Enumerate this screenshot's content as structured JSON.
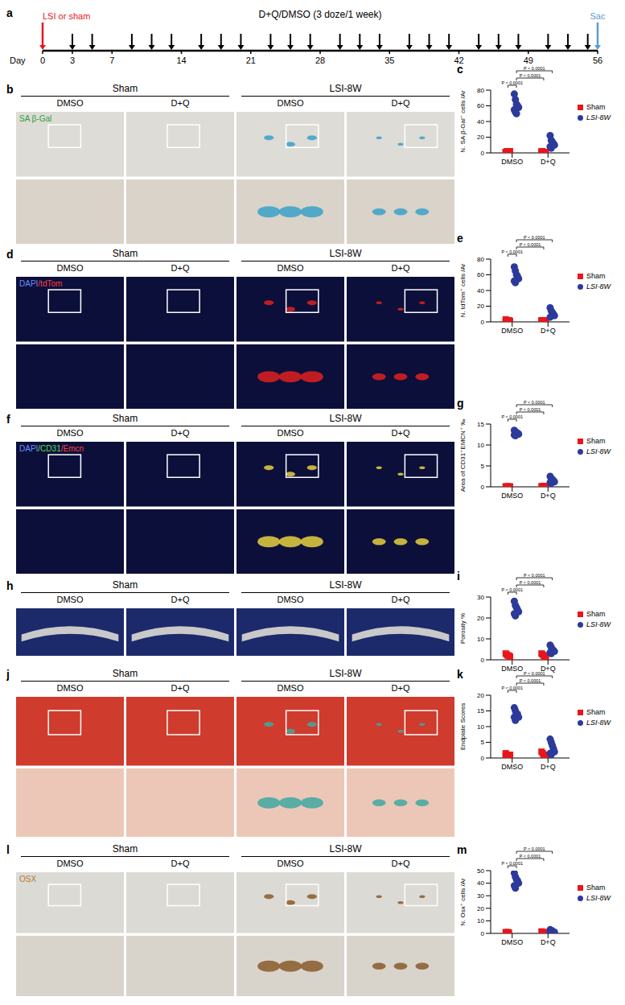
{
  "timeline": {
    "letter": "a",
    "title": "D+Q/DMSO (3 doze/1 week)",
    "x_label": "Day",
    "xlim": [
      0,
      56
    ],
    "xticks": [
      0,
      3,
      7,
      14,
      21,
      28,
      35,
      42,
      49,
      56
    ],
    "start": {
      "day": 0,
      "label": "LSI or sham",
      "color": "#e8161b"
    },
    "end": {
      "day": 56,
      "label": "Sac",
      "color": "#5b9bd5"
    },
    "dose_days": [
      3,
      5,
      9,
      11,
      13,
      16,
      18,
      20,
      23,
      25,
      27,
      30,
      32,
      34,
      37,
      39,
      41,
      44,
      46,
      48,
      51,
      53,
      55
    ]
  },
  "image_panels": [
    {
      "letter": "b",
      "stain": "SA β-Gal",
      "groups": [
        "Sham",
        "LSI-8W"
      ],
      "columns": [
        "DMSO",
        "D+Q"
      ]
    },
    {
      "letter": "d",
      "stain": "DAPI/tdTom",
      "groups": [
        "Sham",
        "LSI-8W"
      ],
      "columns": [
        "DMSO",
        "D+Q"
      ]
    },
    {
      "letter": "f",
      "stain": "DAPI/CD31/Emcn",
      "groups": [
        "Sham",
        "LSI-8W"
      ],
      "columns": [
        "DMSO",
        "D+Q"
      ]
    },
    {
      "letter": "h",
      "groups": [
        "Sham",
        "LSI-8W"
      ],
      "columns": [
        "DMSO",
        "D+Q"
      ]
    },
    {
      "letter": "j",
      "groups": [
        "Sham",
        "LSI-8W"
      ],
      "columns": [
        "DMSO",
        "D+Q"
      ]
    },
    {
      "letter": "l",
      "stain": "OSX",
      "groups": [
        "Sham",
        "LSI-8W"
      ],
      "columns": [
        "DMSO",
        "D+Q"
      ]
    }
  ],
  "chart_data": [
    {
      "letter": "c",
      "type": "scatter",
      "y_label": "N. SA β-Gal⁺ cells /Ar",
      "categories": [
        "DMSO",
        "D+Q"
      ],
      "ylim": [
        0,
        80
      ],
      "yticks": [
        0,
        20,
        40,
        60,
        80
      ],
      "legend": "right",
      "series": [
        {
          "name": "Sham",
          "color": "#e8161b",
          "marker": "square",
          "values": [
            [
              1,
              2,
              1,
              0,
              2,
              1,
              1,
              2
            ],
            [
              1,
              2,
              1,
              0,
              1,
              2
            ]
          ]
        },
        {
          "name": "LSI-8W",
          "color": "#2b3a9b",
          "marker": "circle",
          "values": [
            [
              75,
              68,
              62,
              60,
              58,
              55,
              52,
              50
            ],
            [
              22,
              16,
              14,
              12,
              10,
              8,
              6
            ]
          ]
        }
      ],
      "comparisons": [
        {
          "from": {
            "category": "DMSO",
            "series": "Sham"
          },
          "to": {
            "category": "DMSO",
            "series": "LSI-8W"
          },
          "label": "P < 0.0001"
        },
        {
          "from": {
            "category": "DMSO",
            "series": "LSI-8W"
          },
          "to": {
            "category": "D+Q",
            "series": "Sham"
          },
          "label": "P < 0.0001"
        },
        {
          "from": {
            "category": "DMSO",
            "series": "LSI-8W"
          },
          "to": {
            "category": "D+Q",
            "series": "LSI-8W"
          },
          "label": "P < 0.0001"
        }
      ]
    },
    {
      "letter": "e",
      "type": "scatter",
      "y_label": "N. tdTom⁺ cells /Ar",
      "categories": [
        "DMSO",
        "D+Q"
      ],
      "ylim": [
        0,
        80
      ],
      "yticks": [
        0,
        20,
        40,
        60,
        80
      ],
      "legend": "right",
      "series": [
        {
          "name": "Sham",
          "color": "#e8161b",
          "marker": "square",
          "values": [
            [
              3,
              2,
              1,
              2,
              1,
              0
            ],
            [
              2,
              1,
              2,
              1,
              0,
              1
            ]
          ]
        },
        {
          "name": "LSI-8W",
          "color": "#2b3a9b",
          "marker": "circle",
          "values": [
            [
              70,
              65,
              60,
              58,
              55,
              52,
              50
            ],
            [
              18,
              14,
              12,
              10,
              8,
              6
            ]
          ]
        }
      ],
      "comparisons": [
        {
          "from": {
            "category": "DMSO",
            "series": "Sham"
          },
          "to": {
            "category": "DMSO",
            "series": "LSI-8W"
          },
          "label": "P < 0.0001"
        },
        {
          "from": {
            "category": "DMSO",
            "series": "LSI-8W"
          },
          "to": {
            "category": "D+Q",
            "series": "Sham"
          },
          "label": "P < 0.0001"
        },
        {
          "from": {
            "category": "DMSO",
            "series": "LSI-8W"
          },
          "to": {
            "category": "D+Q",
            "series": "LSI-8W"
          },
          "label": "P < 0.0001"
        }
      ]
    },
    {
      "letter": "g",
      "type": "scatter",
      "y_label": "Area of CD31⁺EMCN⁺ ‰",
      "categories": [
        "DMSO",
        "D+Q"
      ],
      "ylim": [
        0,
        15
      ],
      "yticks": [
        0,
        5,
        10,
        15
      ],
      "legend": "right",
      "series": [
        {
          "name": "Sham",
          "color": "#e8161b",
          "marker": "square",
          "values": [
            [
              0.1,
              0.05,
              0.1,
              0,
              0.1
            ],
            [
              0.1,
              0.2,
              0.1,
              0.05,
              0.1
            ]
          ]
        },
        {
          "name": "LSI-8W",
          "color": "#2b3a9b",
          "marker": "circle",
          "values": [
            [
              13.5,
              13.2,
              13,
              12.8,
              12.6,
              12.4,
              12.2
            ],
            [
              2.5,
              2,
              1.8,
              1.5,
              1.2,
              1,
              0.8
            ]
          ]
        }
      ],
      "comparisons": [
        {
          "from": {
            "category": "DMSO",
            "series": "Sham"
          },
          "to": {
            "category": "DMSO",
            "series": "LSI-8W"
          },
          "label": "P < 0.0001"
        },
        {
          "from": {
            "category": "DMSO",
            "series": "LSI-8W"
          },
          "to": {
            "category": "D+Q",
            "series": "Sham"
          },
          "label": "P < 0.0001"
        },
        {
          "from": {
            "category": "DMSO",
            "series": "LSI-8W"
          },
          "to": {
            "category": "D+Q",
            "series": "LSI-8W"
          },
          "label": "P < 0.0001"
        }
      ]
    },
    {
      "letter": "i",
      "type": "scatter",
      "y_label": "Porosity %",
      "categories": [
        "DMSO",
        "D+Q"
      ],
      "ylim": [
        0,
        30
      ],
      "yticks": [
        0,
        10,
        20,
        30
      ],
      "legend": "right",
      "series": [
        {
          "name": "Sham",
          "color": "#e8161b",
          "marker": "square",
          "values": [
            [
              3,
              2.5,
              2,
              2,
              1.5
            ],
            [
              3,
              2.5,
              2,
              1.5,
              1.5
            ]
          ]
        },
        {
          "name": "LSI-8W",
          "color": "#2b3a9b",
          "marker": "circle",
          "values": [
            [
              28,
              26,
              25,
              24,
              23,
              22,
              21
            ],
            [
              7,
              6,
              5,
              4.5,
              4,
              3.5,
              3
            ]
          ]
        }
      ],
      "comparisons": [
        {
          "from": {
            "category": "DMSO",
            "series": "Sham"
          },
          "to": {
            "category": "DMSO",
            "series": "LSI-8W"
          },
          "label": "P < 0.0001"
        },
        {
          "from": {
            "category": "DMSO",
            "series": "LSI-8W"
          },
          "to": {
            "category": "D+Q",
            "series": "Sham"
          },
          "label": "P < 0.0001"
        },
        {
          "from": {
            "category": "DMSO",
            "series": "LSI-8W"
          },
          "to": {
            "category": "D+Q",
            "series": "LSI-8W"
          },
          "label": "P < 0.0001"
        }
      ]
    },
    {
      "letter": "k",
      "type": "scatter",
      "y_label": "Endplate Scores",
      "categories": [
        "DMSO",
        "D+Q"
      ],
      "ylim": [
        0,
        20
      ],
      "yticks": [
        0,
        5,
        10,
        15,
        20
      ],
      "legend": "right",
      "series": [
        {
          "name": "Sham",
          "color": "#e8161b",
          "marker": "square",
          "values": [
            [
              1.5,
              1,
              1,
              0.5,
              1,
              0.5
            ],
            [
              2,
              1.5,
              1,
              1,
              0.5
            ]
          ]
        },
        {
          "name": "LSI-8W",
          "color": "#2b3a9b",
          "marker": "circle",
          "values": [
            [
              16,
              15,
              14,
              14,
              13,
              13,
              12
            ],
            [
              6,
              5,
              4,
              3,
              2,
              1.5,
              1
            ]
          ]
        }
      ],
      "comparisons": [
        {
          "from": {
            "category": "DMSO",
            "series": "Sham"
          },
          "to": {
            "category": "DMSO",
            "series": "LSI-8W"
          },
          "label": "P < 0.0001"
        },
        {
          "from": {
            "category": "DMSO",
            "series": "LSI-8W"
          },
          "to": {
            "category": "D+Q",
            "series": "Sham"
          },
          "label": "P < 0.0001"
        },
        {
          "from": {
            "category": "DMSO",
            "series": "LSI-8W"
          },
          "to": {
            "category": "D+Q",
            "series": "LSI-8W"
          },
          "label": "P < 0.0001"
        }
      ]
    },
    {
      "letter": "m",
      "type": "scatter",
      "y_label": "N. Osx⁺ cells /Ar",
      "categories": [
        "DMSO",
        "D+Q"
      ],
      "ylim": [
        0,
        50
      ],
      "yticks": [
        0,
        10,
        20,
        30,
        40,
        50
      ],
      "legend": "right",
      "series": [
        {
          "name": "Sham",
          "color": "#e8161b",
          "marker": "square",
          "values": [
            [
              1,
              0.5,
              1,
              0.5
            ],
            [
              1.5,
              1,
              1,
              0.5
            ]
          ]
        },
        {
          "name": "LSI-8W",
          "color": "#2b3a9b",
          "marker": "circle",
          "values": [
            [
              48,
              45,
              43,
              42,
              40,
              38,
              36
            ],
            [
              3,
              2,
              2,
              1,
              1,
              0.5
            ]
          ]
        }
      ],
      "comparisons": [
        {
          "from": {
            "category": "DMSO",
            "series": "Sham"
          },
          "to": {
            "category": "DMSO",
            "series": "LSI-8W"
          },
          "label": "P < 0.0001"
        },
        {
          "from": {
            "category": "DMSO",
            "series": "LSI-8W"
          },
          "to": {
            "category": "D+Q",
            "series": "Sham"
          },
          "label": "P < 0.0001"
        },
        {
          "from": {
            "category": "DMSO",
            "series": "LSI-8W"
          },
          "to": {
            "category": "D+Q",
            "series": "LSI-8W"
          },
          "label": "P < 0.0001"
        }
      ]
    }
  ]
}
